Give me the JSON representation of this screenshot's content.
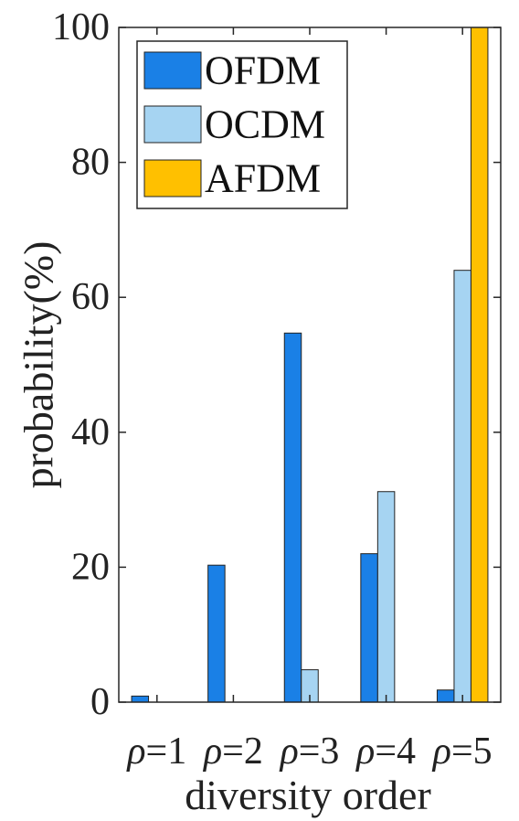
{
  "chart_data": {
    "type": "bar",
    "categories": [
      "ρ=1",
      "ρ=2",
      "ρ=3",
      "ρ=4",
      "ρ=5"
    ],
    "series": [
      {
        "name": "OFDM",
        "color": "#1a80e6",
        "values": [
          0.9,
          20.3,
          54.7,
          22.0,
          1.8
        ]
      },
      {
        "name": "OCDM",
        "color": "#a6d4f2",
        "values": [
          0,
          0,
          4.8,
          31.2,
          64.0
        ]
      },
      {
        "name": "AFDM",
        "color": "#ffc000",
        "values": [
          0,
          0,
          0,
          0,
          100
        ]
      }
    ],
    "title": "",
    "xlabel": "diversity order",
    "ylabel": "probability(%)",
    "ylim": [
      0,
      100
    ],
    "yticks": [
      "0",
      "20",
      "40",
      "60",
      "80",
      "100"
    ],
    "grid": false,
    "legend_position": "top-left"
  }
}
